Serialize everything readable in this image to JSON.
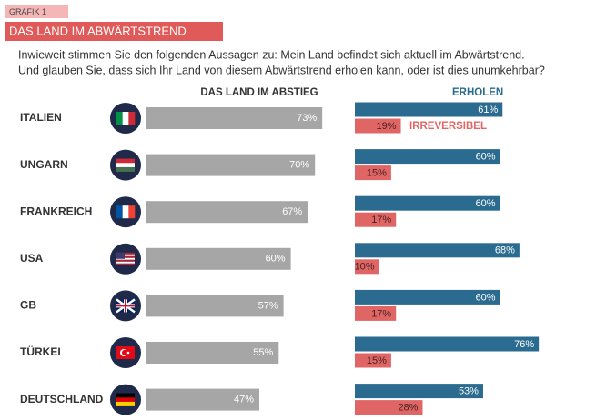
{
  "header": {
    "label": "GRAFIK 1",
    "title": "DAS LAND IM ABWÄRTSTREND",
    "subtitle": [
      "Inwieweit stimmen Sie den folgenden Aussagen zu: Mein Land befindet sich aktuell im Abwärtstrend.",
      "Und glauben Sie, dass sich Ihr Land von diesem Abwärtstrend erholen kann, oder ist dies unumkehrbar?"
    ]
  },
  "chart_data": [
    {
      "type": "bar",
      "title": "DAS LAND IM ABSTIEG",
      "categories": [
        "ITALIEN",
        "UNGARN",
        "FRANKREICH",
        "USA",
        "GB",
        "TÜRKEI",
        "DEUTSCHLAND"
      ],
      "values": [
        73,
        70,
        67,
        60,
        57,
        55,
        47
      ],
      "value_labels": [
        "73%",
        "70%",
        "67%",
        "60%",
        "57%",
        "55%",
        "47%"
      ],
      "color": "#a6a6a6"
    },
    {
      "type": "grouped-bar",
      "series": [
        {
          "name": "ERHOLEN",
          "color": "#2a6b8f",
          "values": [
            61,
            60,
            60,
            68,
            60,
            76,
            53
          ],
          "value_labels": [
            "61%",
            "60%",
            "60%",
            "68%",
            "60%",
            "76%",
            "53%"
          ]
        },
        {
          "name": "IRREVERSIBEL",
          "color": "#e06666",
          "values": [
            19,
            15,
            17,
            10,
            17,
            15,
            28
          ],
          "value_labels": [
            "19%",
            "15%",
            "17%",
            "10%",
            "17%",
            "15%",
            "28%"
          ]
        }
      ]
    }
  ]
}
